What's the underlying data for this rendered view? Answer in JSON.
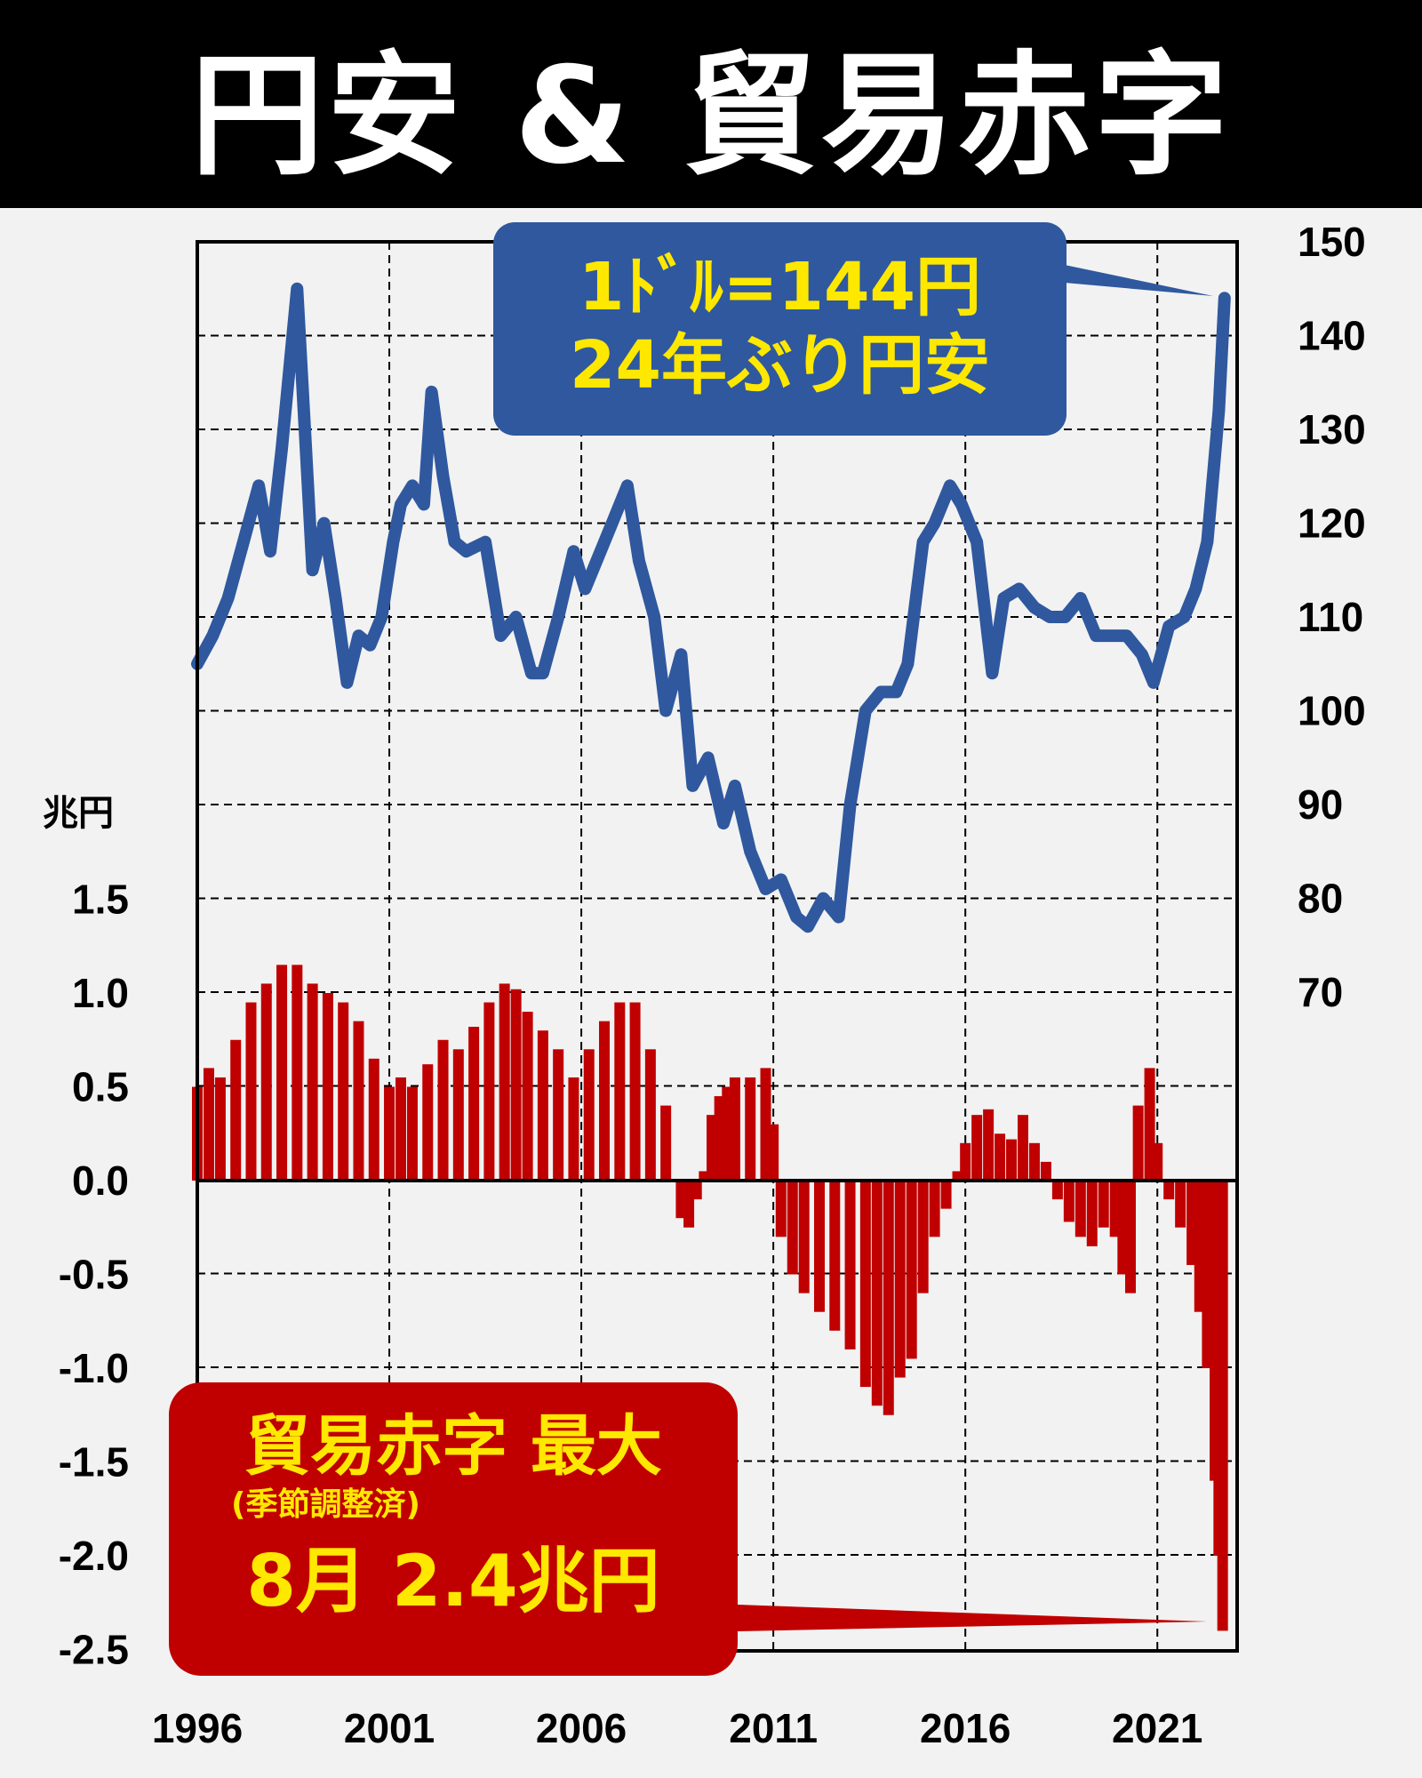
{
  "title": "円安 & 貿易赤字",
  "callout_fx": {
    "line1": "1ﾄﾞﾙ=144円",
    "line2": "24年ぶり円安"
  },
  "callout_trade": {
    "line1": "貿易赤字 最大",
    "line2": "(季節調整済)",
    "line3": "8月 2.4兆円"
  },
  "colors": {
    "fx_line": "#2f589f",
    "trade_bars": "#c00000",
    "callout_text": "#ffe800",
    "header_bg": "#000000"
  },
  "chart_data": [
    {
      "type": "line",
      "title": "",
      "ylabel": "",
      "ylim": [
        70,
        150
      ],
      "xlim": [
        1996,
        2022.8
      ],
      "x_ticks": [
        "1996",
        "2001",
        "2006",
        "2011",
        "2016",
        "2021"
      ],
      "y_ticks": [
        "150",
        "140",
        "130",
        "120",
        "110",
        "100",
        "90",
        "80",
        "70"
      ],
      "axis_position": "right",
      "grid": true,
      "series": [
        {
          "x": [
            1996.0,
            1996.4,
            1996.8,
            1997.2,
            1997.6,
            1997.9,
            1998.2,
            1998.6,
            1998.8,
            1999.0,
            1999.3,
            1999.6,
            1999.9,
            2000.2,
            2000.5,
            2000.8,
            2001.1,
            2001.3,
            2001.6,
            2001.9,
            2002.1,
            2002.4,
            2002.7,
            2003.0,
            2003.5,
            2003.9,
            2004.3,
            2004.7,
            2005.0,
            2005.4,
            2005.8,
            2006.1,
            2006.4,
            2006.8,
            2007.2,
            2007.5,
            2007.9,
            2008.2,
            2008.6,
            2008.9,
            2009.3,
            2009.7,
            2010.0,
            2010.4,
            2010.8,
            2011.2,
            2011.6,
            2011.9,
            2012.3,
            2012.7,
            2013.0,
            2013.4,
            2013.8,
            2014.2,
            2014.5,
            2014.9,
            2015.2,
            2015.6,
            2015.9,
            2016.3,
            2016.7,
            2017.0,
            2017.4,
            2017.8,
            2018.2,
            2018.6,
            2019.0,
            2019.4,
            2019.8,
            2020.2,
            2020.6,
            2020.9,
            2021.3,
            2021.7,
            2022.0,
            2022.3,
            2022.6,
            2022.75
          ],
          "y": [
            105,
            108,
            112,
            118,
            124,
            117,
            128,
            145,
            130,
            115,
            120,
            112,
            103,
            108,
            107,
            110,
            118,
            122,
            124,
            122,
            134,
            125,
            118,
            117,
            118,
            108,
            110,
            104,
            104,
            110,
            117,
            113,
            116,
            120,
            124,
            116,
            110,
            100,
            106,
            92,
            95,
            88,
            92,
            85,
            81,
            82,
            78,
            77,
            80,
            78,
            90,
            100,
            102,
            102,
            105,
            118,
            120,
            124,
            122,
            118,
            104,
            112,
            113,
            111,
            110,
            110,
            112,
            108,
            108,
            108,
            106,
            103,
            109,
            110,
            113,
            118,
            132,
            144
          ]
        }
      ]
    },
    {
      "type": "bar",
      "title": "",
      "unit": "兆円",
      "ylim": [
        -2.5,
        1.5
      ],
      "y_ticks": [
        "1.5",
        "1.0",
        "0.5",
        "0.0",
        "-0.5",
        "-1.0",
        "-1.5",
        "-2.0",
        "-2.5"
      ],
      "axis_position": "left",
      "x": [
        1996.0,
        1996.3,
        1996.6,
        1997.0,
        1997.4,
        1997.8,
        1998.2,
        1998.6,
        1999.0,
        1999.4,
        1999.8,
        2000.2,
        2000.6,
        2001.0,
        2001.3,
        2001.6,
        2002.0,
        2002.4,
        2002.8,
        2003.2,
        2003.6,
        2004.0,
        2004.3,
        2004.6,
        2005.0,
        2005.4,
        2005.8,
        2006.2,
        2006.6,
        2007.0,
        2007.4,
        2007.8,
        2008.2,
        2008.4,
        2008.6,
        2008.8,
        2009.0,
        2009.2,
        2009.4,
        2009.6,
        2009.8,
        2010.0,
        2010.4,
        2010.8,
        2011.0,
        2011.2,
        2011.5,
        2011.8,
        2012.2,
        2012.6,
        2013.0,
        2013.4,
        2013.7,
        2014.0,
        2014.3,
        2014.6,
        2014.9,
        2015.2,
        2015.5,
        2015.8,
        2016.0,
        2016.3,
        2016.6,
        2016.9,
        2017.2,
        2017.5,
        2017.8,
        2018.1,
        2018.4,
        2018.7,
        2019.0,
        2019.3,
        2019.6,
        2019.9,
        2020.1,
        2020.3,
        2020.5,
        2020.8,
        2021.0,
        2021.3,
        2021.6,
        2021.9,
        2022.1,
        2022.3,
        2022.5,
        2022.6,
        2022.7
      ],
      "values": [
        0.5,
        0.6,
        0.55,
        0.75,
        0.95,
        1.05,
        1.15,
        1.15,
        1.05,
        1.0,
        0.95,
        0.85,
        0.65,
        0.5,
        0.55,
        0.5,
        0.62,
        0.75,
        0.7,
        0.82,
        0.95,
        1.05,
        1.02,
        0.9,
        0.8,
        0.7,
        0.55,
        0.7,
        0.85,
        0.95,
        0.95,
        0.7,
        0.4,
        0.0,
        -0.2,
        -0.25,
        -0.1,
        0.05,
        0.35,
        0.45,
        0.5,
        0.55,
        0.55,
        0.6,
        0.3,
        -0.3,
        -0.5,
        -0.6,
        -0.7,
        -0.8,
        -0.9,
        -1.1,
        -1.2,
        -1.25,
        -1.05,
        -0.95,
        -0.6,
        -0.3,
        -0.15,
        0.05,
        0.2,
        0.35,
        0.38,
        0.25,
        0.22,
        0.35,
        0.2,
        0.1,
        -0.1,
        -0.22,
        -0.3,
        -0.35,
        -0.25,
        -0.3,
        -0.5,
        -0.6,
        0.4,
        0.6,
        0.2,
        -0.1,
        -0.25,
        -0.45,
        -0.7,
        -1.0,
        -1.6,
        -2.0,
        -2.4
      ]
    }
  ]
}
